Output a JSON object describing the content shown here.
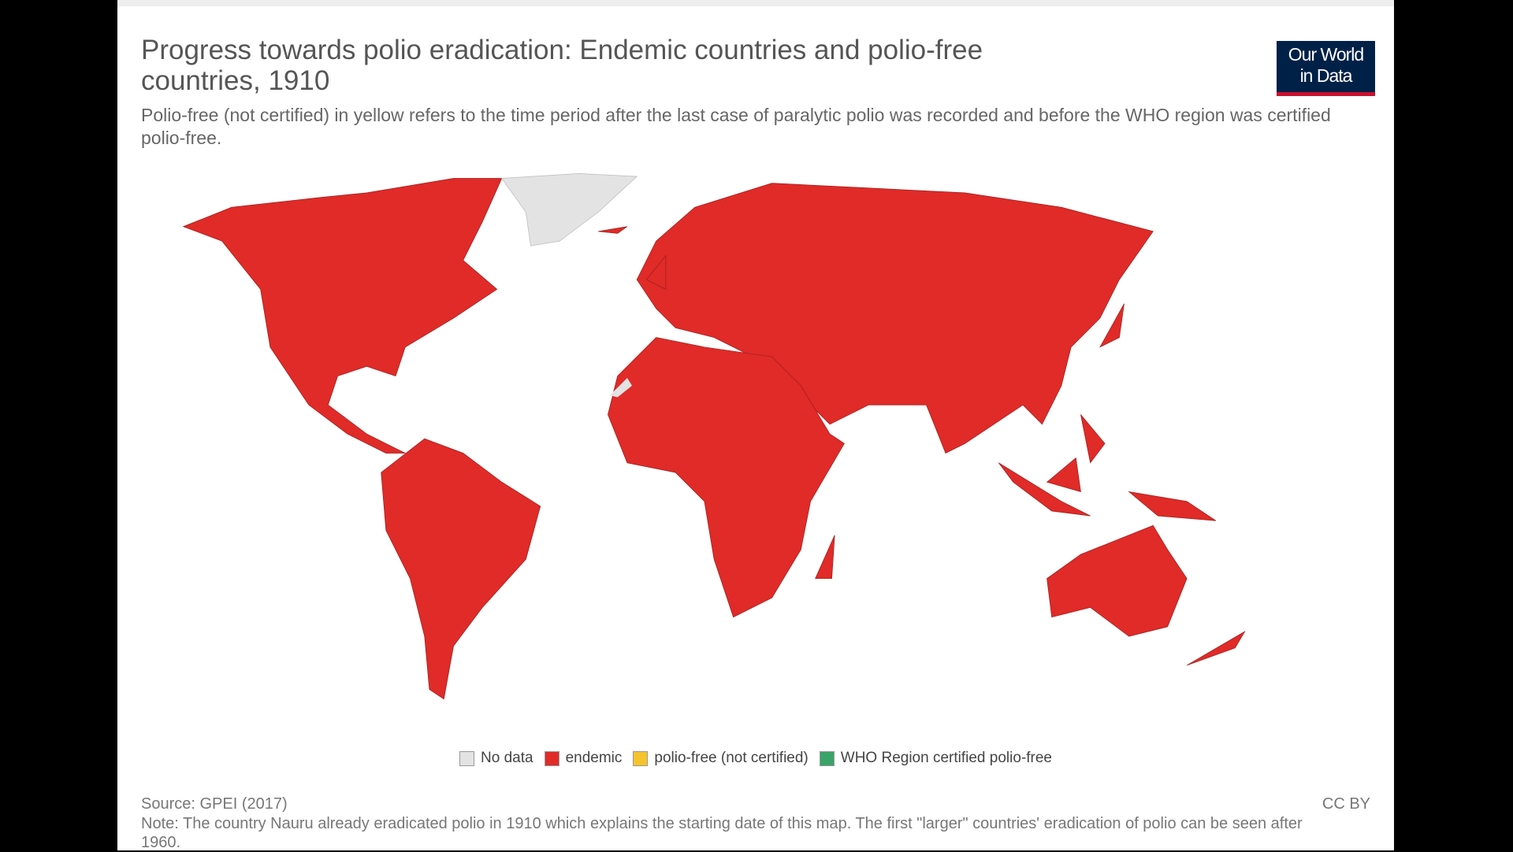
{
  "header": {
    "title": "Progress towards polio eradication: Endemic countries and polio-free countries, 1910",
    "subtitle": "Polio-free (not certified) in yellow refers to the time period after the last case of paralytic polio was recorded and before the WHO region was certified polio-free.",
    "logo": [
      "Our World",
      "in Data"
    ]
  },
  "legend": [
    {
      "label": "No data",
      "color": "#e3e3e3"
    },
    {
      "label": "endemic",
      "color": "#e02b28"
    },
    {
      "label": "polio-free (not certified)",
      "color": "#f5c42c"
    },
    {
      "label": "WHO Region certified polio-free",
      "color": "#3aa36a"
    }
  ],
  "footer": {
    "source": "Source: GPEI (2017)",
    "note": "Note: The country Nauru already eradicated polio in 1910 which explains the starting date of this map. The first \"larger\" countries' eradication of polio can be seen after 1960.",
    "license": "CC BY"
  }
}
